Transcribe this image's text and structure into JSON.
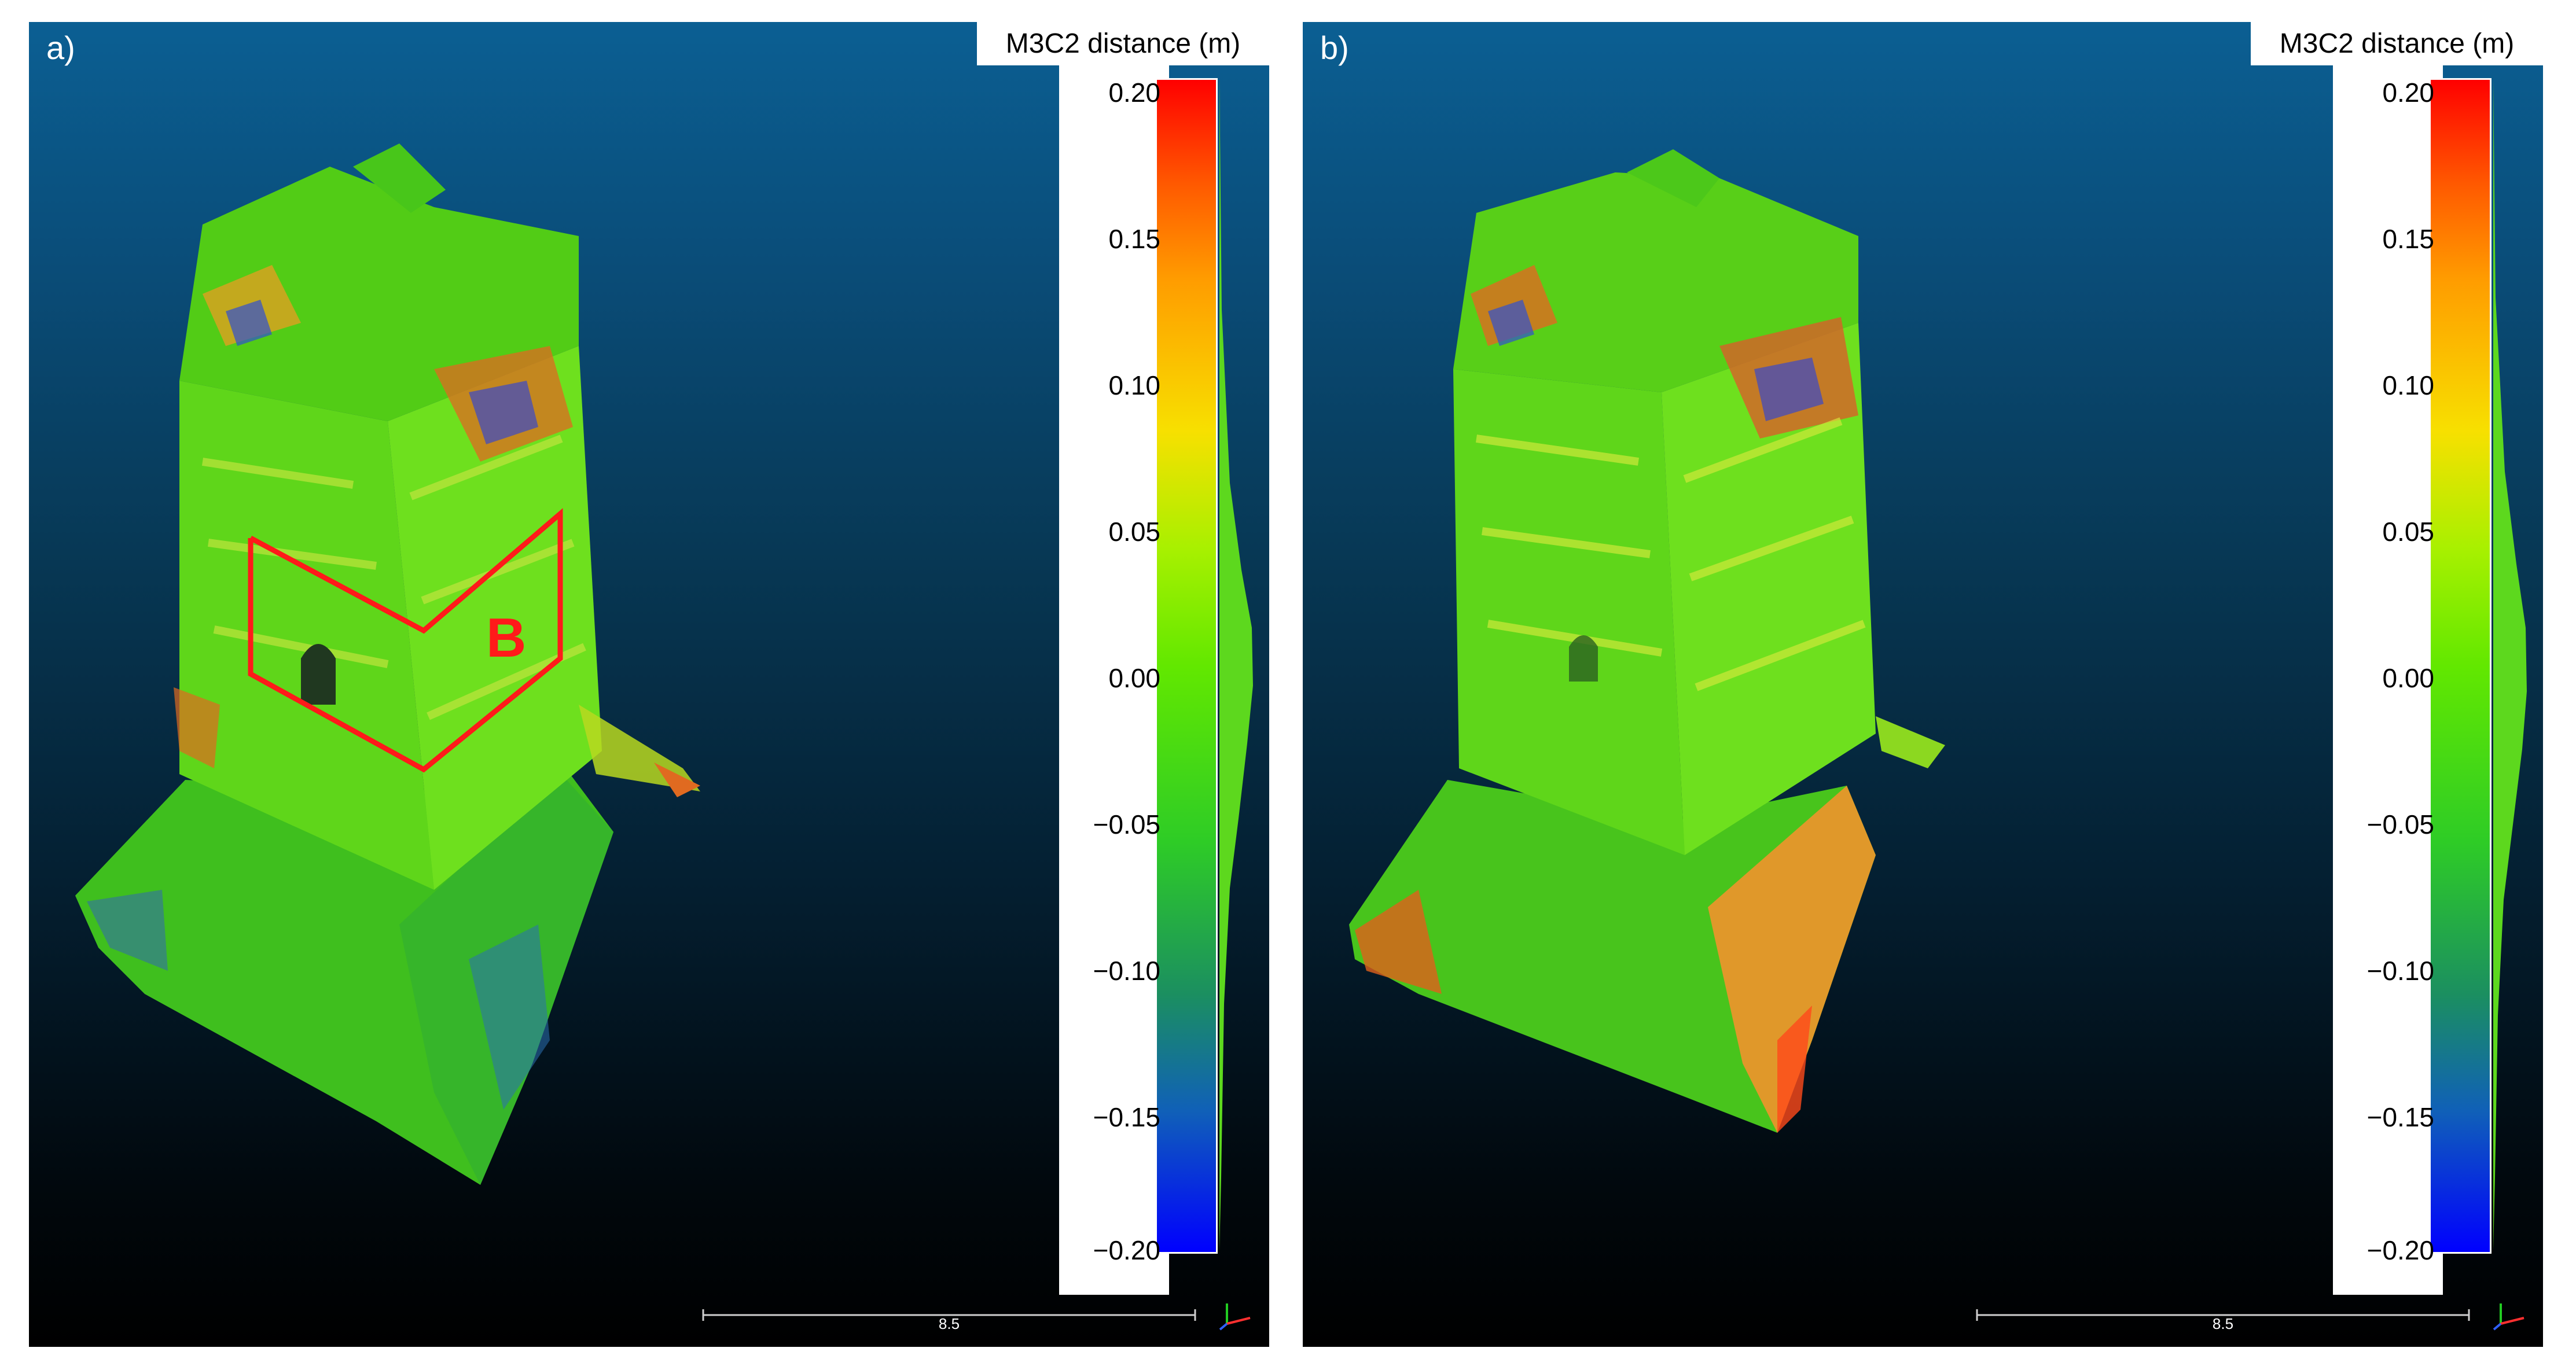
{
  "panels": [
    {
      "label": "a)",
      "region_label": "B"
    },
    {
      "label": "b)"
    }
  ],
  "legend": {
    "title": "M3C2 distance (m)",
    "ticks": [
      "0.20",
      "0.15",
      "0.10",
      "0.05",
      "0.00",
      "−0.05",
      "−0.10",
      "−0.15",
      "−0.20"
    ],
    "range": [
      -0.2,
      0.2
    ],
    "colors": [
      "#0000ff",
      "#00ff00",
      "#ffff00",
      "#ff0000"
    ]
  },
  "scale_bar": {
    "label": "8.5"
  }
}
